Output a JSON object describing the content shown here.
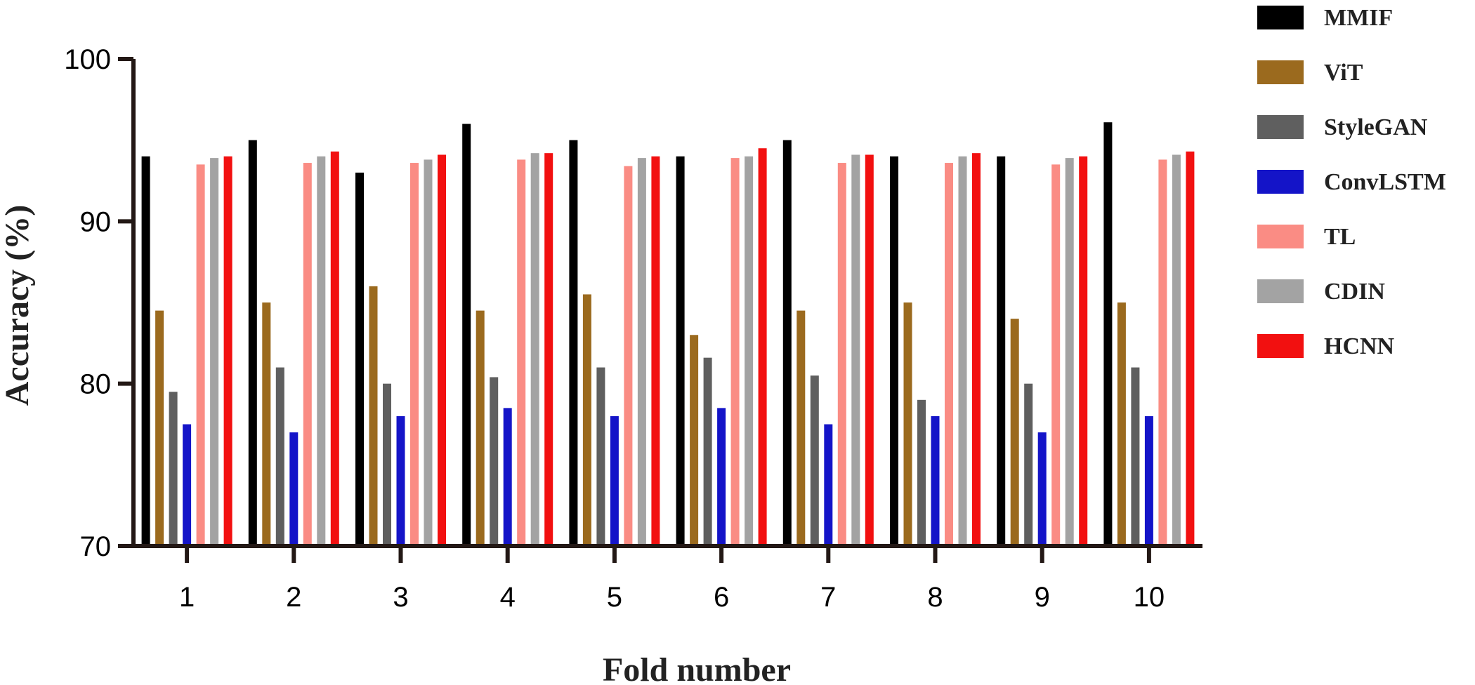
{
  "chart_data": {
    "type": "bar",
    "title": "",
    "xlabel": "Fold number",
    "ylabel": "Accuracy (%)",
    "ylim": [
      70,
      100
    ],
    "yticks": [
      70,
      80,
      90,
      100
    ],
    "grid": false,
    "legend_position": "top-right",
    "categories": [
      "1",
      "2",
      "3",
      "4",
      "5",
      "6",
      "7",
      "8",
      "9",
      "10"
    ],
    "series": [
      {
        "name": "MMIF",
        "color": "#000000",
        "values": [
          94.0,
          95.0,
          93.0,
          96.0,
          95.0,
          94.0,
          95.0,
          94.0,
          94.0,
          96.1
        ]
      },
      {
        "name": "ViT",
        "color": "#9B6A1E",
        "values": [
          84.5,
          85.0,
          86.0,
          84.5,
          85.5,
          83.0,
          84.5,
          85.0,
          84.0,
          85.0
        ]
      },
      {
        "name": "StyleGAN",
        "color": "#5F5F5F",
        "values": [
          79.5,
          81.0,
          80.0,
          80.4,
          81.0,
          81.6,
          80.5,
          79.0,
          80.0,
          81.0
        ]
      },
      {
        "name": "ConvLSTM",
        "color": "#1414C8",
        "values": [
          77.5,
          77.0,
          78.0,
          78.5,
          78.0,
          78.5,
          77.5,
          78.0,
          77.0,
          78.0
        ]
      },
      {
        "name": "TL",
        "color": "#FA8C84",
        "values": [
          93.5,
          93.6,
          93.6,
          93.8,
          93.4,
          93.9,
          93.6,
          93.6,
          93.5,
          93.8
        ]
      },
      {
        "name": "CDIN",
        "color": "#A3A3A3",
        "values": [
          93.9,
          94.0,
          93.8,
          94.2,
          93.9,
          94.0,
          94.1,
          94.0,
          93.9,
          94.1
        ]
      },
      {
        "name": "HCNN",
        "color": "#F21010",
        "values": [
          94.0,
          94.3,
          94.1,
          94.2,
          94.0,
          94.5,
          94.1,
          94.2,
          94.0,
          94.3
        ]
      }
    ]
  }
}
